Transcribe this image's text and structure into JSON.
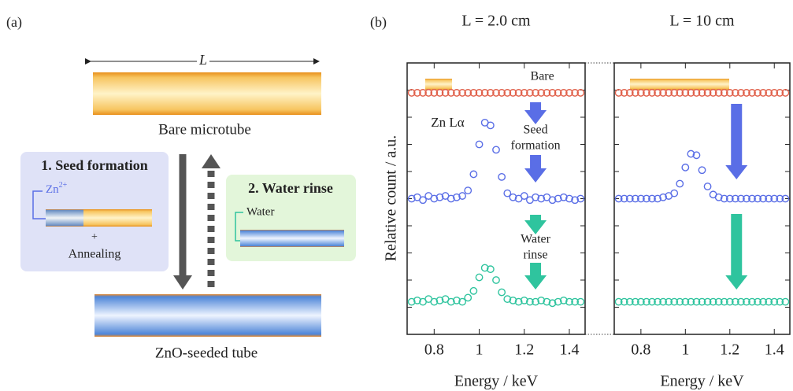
{
  "diagram": {
    "panel_label": "(a)",
    "length_label": "L",
    "bare_caption": "Bare microtube",
    "step1": {
      "title": "1. Seed formation",
      "ion": {
        "text": "Zn",
        "sup": "2+"
      },
      "plus": "+",
      "annealing": "Annealing"
    },
    "step2": {
      "title": "2. Water rinse",
      "water": "Water"
    },
    "seeded_caption": "ZnO-seeded tube"
  },
  "panel_b_label": "(b)",
  "y_axis_label": "Relative count / a.u.",
  "chart_data": [
    {
      "type": "scatter",
      "title": "L = 2.0 cm",
      "x_label": "Energy / keV",
      "xlim": [
        0.68,
        1.47
      ],
      "xticks": [
        0.8,
        1,
        1.2,
        1.4
      ],
      "ylim": [
        0,
        10
      ],
      "yticks": [
        1,
        2,
        3,
        4,
        5,
        6,
        7,
        8,
        9
      ],
      "annotations": {
        "bare": "Bare",
        "peak": "Zn Lα",
        "seed": [
          "Seed",
          "formation"
        ],
        "water": [
          "Water",
          "rinse"
        ]
      },
      "x": [
        0.7,
        0.725,
        0.75,
        0.775,
        0.8,
        0.825,
        0.85,
        0.875,
        0.9,
        0.925,
        0.95,
        0.975,
        1.0,
        1.025,
        1.05,
        1.075,
        1.1,
        1.125,
        1.15,
        1.175,
        1.2,
        1.225,
        1.25,
        1.275,
        1.3,
        1.325,
        1.35,
        1.375,
        1.4,
        1.425,
        1.45
      ],
      "series": [
        {
          "color": "#e0604a",
          "values": [
            8.9,
            8.9,
            8.9,
            8.9,
            8.9,
            8.9,
            8.9,
            8.9,
            8.9,
            8.9,
            8.9,
            8.9,
            8.9,
            8.9,
            8.9,
            8.9,
            8.9,
            8.9,
            8.9,
            8.9,
            8.9,
            8.9,
            8.9,
            8.9,
            8.9,
            8.9,
            8.9,
            8.9,
            8.9,
            8.9,
            8.9
          ]
        },
        {
          "color": "#5a6ee6",
          "values": [
            5.0,
            5.05,
            4.95,
            5.1,
            5.0,
            5.05,
            5.1,
            5.0,
            5.05,
            5.1,
            5.3,
            5.9,
            7.0,
            7.8,
            7.7,
            6.8,
            5.8,
            5.2,
            5.05,
            5.0,
            5.1,
            4.95,
            5.05,
            5.0,
            5.05,
            4.95,
            5.0,
            5.05,
            5.0,
            4.95,
            5.0
          ]
        },
        {
          "color": "#2fc49e",
          "values": [
            1.2,
            1.25,
            1.2,
            1.3,
            1.2,
            1.25,
            1.3,
            1.2,
            1.25,
            1.2,
            1.35,
            1.6,
            2.1,
            2.45,
            2.4,
            2.0,
            1.55,
            1.3,
            1.25,
            1.2,
            1.25,
            1.2,
            1.2,
            1.25,
            1.2,
            1.15,
            1.2,
            1.25,
            1.2,
            1.2,
            1.2
          ]
        }
      ]
    },
    {
      "type": "scatter",
      "title": "L = 10 cm",
      "x_label": "Energy / keV",
      "xlim": [
        0.68,
        1.47
      ],
      "xticks": [
        0.8,
        1,
        1.2,
        1.4
      ],
      "ylim": [
        0,
        10
      ],
      "yticks": [
        1,
        2,
        3,
        4,
        5,
        6,
        7,
        8,
        9
      ],
      "x": [
        0.7,
        0.725,
        0.75,
        0.775,
        0.8,
        0.825,
        0.85,
        0.875,
        0.9,
        0.925,
        0.95,
        0.975,
        1.0,
        1.025,
        1.05,
        1.075,
        1.1,
        1.125,
        1.15,
        1.175,
        1.2,
        1.225,
        1.25,
        1.275,
        1.3,
        1.325,
        1.35,
        1.375,
        1.4,
        1.425,
        1.45
      ],
      "series": [
        {
          "color": "#e0604a",
          "values": [
            8.9,
            8.9,
            8.9,
            8.9,
            8.9,
            8.9,
            8.9,
            8.9,
            8.9,
            8.9,
            8.9,
            8.9,
            8.9,
            8.9,
            8.9,
            8.9,
            8.9,
            8.9,
            8.9,
            8.9,
            8.9,
            8.9,
            8.9,
            8.9,
            8.9,
            8.9,
            8.9,
            8.9,
            8.9,
            8.9,
            8.9
          ]
        },
        {
          "color": "#5a6ee6",
          "values": [
            5.0,
            5.0,
            5.0,
            5.0,
            5.0,
            5.0,
            5.0,
            5.0,
            5.05,
            5.1,
            5.2,
            5.55,
            6.15,
            6.65,
            6.6,
            6.05,
            5.45,
            5.15,
            5.05,
            5.0,
            5.0,
            5.0,
            5.0,
            5.0,
            5.0,
            5.0,
            5.0,
            5.0,
            5.0,
            5.0,
            5.0
          ]
        },
        {
          "color": "#2fc49e",
          "values": [
            1.2,
            1.2,
            1.2,
            1.2,
            1.2,
            1.2,
            1.2,
            1.2,
            1.2,
            1.2,
            1.2,
            1.2,
            1.2,
            1.2,
            1.2,
            1.2,
            1.2,
            1.2,
            1.2,
            1.2,
            1.2,
            1.2,
            1.2,
            1.2,
            1.2,
            1.2,
            1.2,
            1.2,
            1.2,
            1.2,
            1.2
          ]
        }
      ]
    }
  ]
}
